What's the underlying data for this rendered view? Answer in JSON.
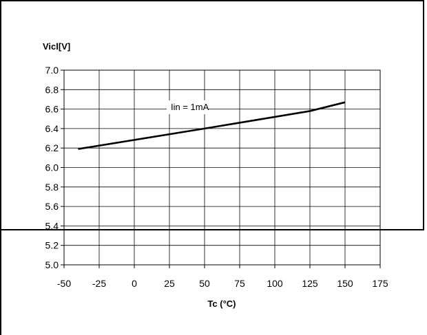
{
  "chart_data": {
    "type": "line",
    "title": "",
    "ylabel": "Vicl[V]",
    "xlabel": "Tc (°C)",
    "xlim": [
      -50,
      175
    ],
    "ylim": [
      5.0,
      7.0
    ],
    "x_ticks": [
      "-50",
      "-25",
      "0",
      "25",
      "50",
      "75",
      "100",
      "125",
      "150",
      "175"
    ],
    "y_ticks": [
      "5.0",
      "5.2",
      "5.4",
      "5.6",
      "5.8",
      "6.0",
      "6.2",
      "6.4",
      "6.6",
      "6.8",
      "7.0"
    ],
    "grid": true,
    "series": [
      {
        "x": [
          -40,
          50,
          125,
          150
        ],
        "y": [
          6.19,
          6.4,
          6.58,
          6.67
        ]
      }
    ],
    "annotation": "Iin = 1mA"
  }
}
